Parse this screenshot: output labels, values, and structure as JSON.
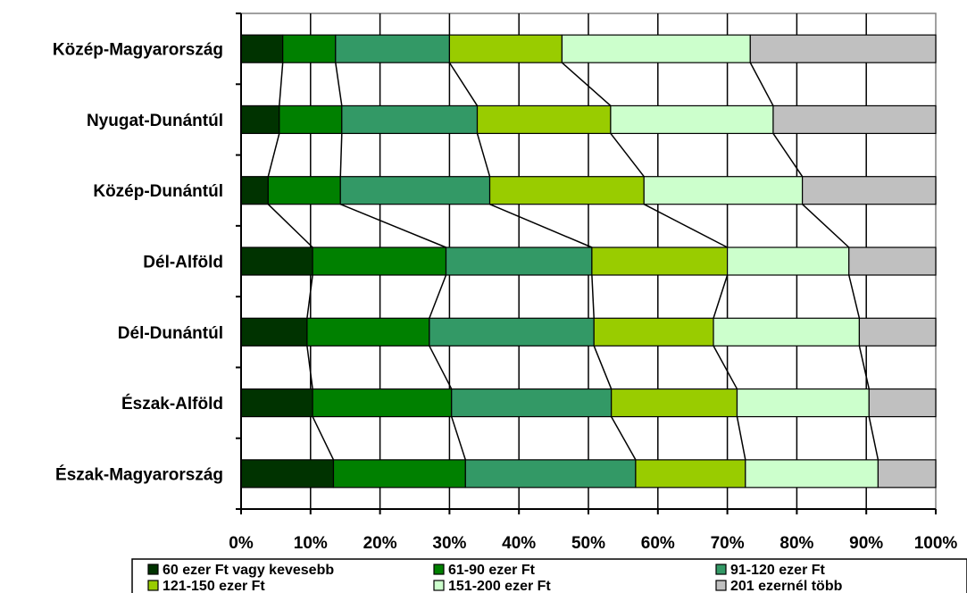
{
  "chart_data": {
    "type": "bar",
    "orientation": "horizontal",
    "stacked": "percent",
    "categories": [
      "Közép-Magyarország",
      "Nyugat-Dunántúl",
      "Közép-Dunántúl",
      "Dél-Alföld",
      "Dél-Dunántúl",
      "Észak-Alföld",
      "Észak-Magyarország"
    ],
    "series": [
      {
        "name": "60 ezer Ft vagy kevesebb",
        "color": "#003300",
        "values": [
          6.0,
          5.5,
          3.9,
          10.3,
          9.5,
          10.3,
          13.3
        ]
      },
      {
        "name": "61-90 ezer Ft",
        "color": "#008000",
        "values": [
          7.6,
          9.0,
          10.4,
          19.2,
          17.6,
          20.0,
          19.0
        ]
      },
      {
        "name": "91-120 ezer Ft",
        "color": "#339966",
        "values": [
          16.4,
          19.5,
          21.5,
          21.0,
          23.7,
          23.0,
          24.5
        ]
      },
      {
        "name": "121-150 ezer Ft",
        "color": "#99CC00",
        "values": [
          16.2,
          19.2,
          22.2,
          19.5,
          17.2,
          18.1,
          15.8
        ]
      },
      {
        "name": "151-200 ezer Ft",
        "color": "#CCFFCC",
        "values": [
          27.1,
          23.4,
          22.8,
          17.5,
          21.0,
          19.0,
          19.1
        ]
      },
      {
        "name": "201 ezernél több",
        "color": "#C0C0C0",
        "values": [
          26.7,
          23.4,
          19.2,
          12.5,
          11.0,
          9.6,
          8.3
        ]
      }
    ],
    "x_ticks": [
      "0%",
      "10%",
      "20%",
      "30%",
      "40%",
      "50%",
      "60%",
      "70%",
      "80%",
      "90%",
      "100%"
    ],
    "xlim": [
      0,
      100
    ],
    "series_lines": true,
    "legend_position": "bottom",
    "grid": true
  }
}
